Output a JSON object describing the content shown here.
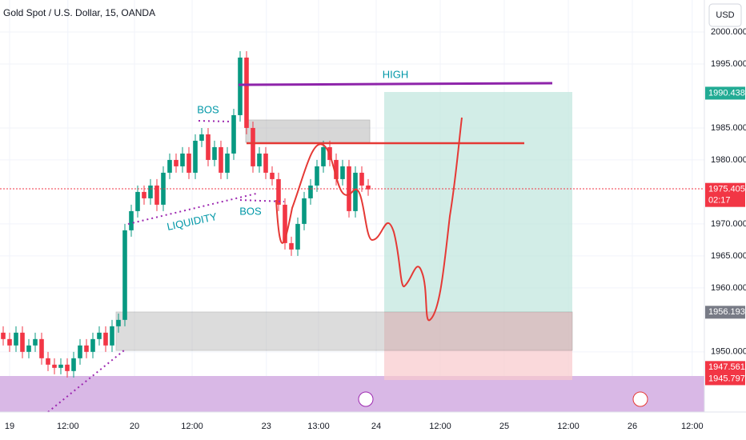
{
  "chart_data": {
    "type": "candlestick",
    "title": "Gold Spot / U.S. Dollar, 15, OANDA",
    "currency": "USD",
    "up_color": "#089981",
    "down_color": "#f23645",
    "xlim": [
      0,
      110
    ],
    "ylim": [
      1940.6,
      2005
    ],
    "xticks": [
      {
        "value": 1.5,
        "label": "19"
      },
      {
        "value": 10.6,
        "label": "12:00"
      },
      {
        "value": 21,
        "label": "20"
      },
      {
        "value": 30,
        "label": "12:00"
      },
      {
        "value": 41.6,
        "label": "23"
      },
      {
        "value": 49.75,
        "label": "13:00"
      },
      {
        "value": 58.75,
        "label": "24"
      },
      {
        "value": 68.75,
        "label": "12:00"
      },
      {
        "value": 78.75,
        "label": "25"
      },
      {
        "value": 88.75,
        "label": "12:00"
      },
      {
        "value": 98.75,
        "label": "26"
      },
      {
        "value": 108.1,
        "label": "12:00"
      }
    ],
    "yticks": [
      {
        "value": 1950,
        "label": "1950.000"
      },
      {
        "value": 1960,
        "label": "1960.000"
      },
      {
        "value": 1965,
        "label": "1965.000"
      },
      {
        "value": 1970,
        "label": "1970.000"
      },
      {
        "value": 1980,
        "label": "1980.000"
      },
      {
        "value": 1985,
        "label": "1985.000"
      },
      {
        "value": 1995,
        "label": "1995.000"
      },
      {
        "value": 2000,
        "label": "2000.000"
      }
    ],
    "open": [
      1953,
      1952,
      1951,
      1953,
      1950,
      1951,
      1952,
      1949,
      1948,
      1947.5,
      1948,
      1947,
      1949,
      1951,
      1950,
      1952,
      1953,
      1951,
      1954,
      1955,
      1969,
      1972,
      1975,
      1974,
      1976,
      1973,
      1978,
      1980,
      1979,
      1981,
      1978,
      1983,
      1984,
      1980,
      1982,
      1978,
      1981,
      1987,
      1996,
      1985,
      1979,
      1981,
      1978,
      1977,
      1973,
      1967,
      1966,
      1970,
      1974,
      1976,
      1979,
      1982,
      1980,
      1977,
      1979,
      1972,
      1978,
      1976
    ],
    "high": [
      1954,
      1953,
      1954,
      1954,
      1952,
      1953,
      1953,
      1950,
      1949,
      1949,
      1949,
      1950,
      1952,
      1952,
      1953,
      1954,
      1954,
      1955,
      1956,
      1970,
      1973,
      1976,
      1976,
      1977,
      1977,
      1979,
      1981,
      1981,
      1982,
      1982,
      1984,
      1985,
      1985,
      1983,
      1983,
      1982,
      1988,
      1997,
      1997,
      1986,
      1982,
      1982,
      1979,
      1978,
      1974,
      1968,
      1971,
      1975,
      1977,
      1980,
      1983,
      1983,
      1981,
      1980,
      1980,
      1979,
      1979,
      1977
    ],
    "low": [
      1951,
      1950,
      1950,
      1949,
      1949,
      1950,
      1948,
      1947,
      1946.5,
      1946.5,
      1946,
      1946,
      1948,
      1949,
      1949,
      1951,
      1950,
      1950,
      1953,
      1954,
      1968,
      1971,
      1973,
      1973,
      1972,
      1972,
      1977,
      1978,
      1978,
      1977,
      1977,
      1982,
      1979,
      1979,
      1977,
      1977,
      1980,
      1986,
      1984,
      1978,
      1978,
      1977,
      1976,
      1972,
      1966,
      1965,
      1965,
      1969,
      1973,
      1975,
      1978,
      1979,
      1976,
      1976,
      1971,
      1971,
      1975,
      1974.4
    ],
    "close": [
      1952,
      1951,
      1953,
      1950,
      1951,
      1952,
      1949,
      1948,
      1947.5,
      1948,
      1947,
      1949,
      1951,
      1950,
      1952,
      1953,
      1951,
      1954,
      1955,
      1969,
      1972,
      1975,
      1974,
      1976,
      1973,
      1978,
      1980,
      1979,
      1981,
      1978,
      1983,
      1984,
      1980,
      1982,
      1978,
      1981,
      1987,
      1996,
      1985,
      1979,
      1981,
      1978,
      1977,
      1973,
      1967,
      1966,
      1970,
      1974,
      1976,
      1979,
      1982,
      1980,
      1977,
      1979,
      1972,
      1978,
      1976,
      1975.4
    ],
    "price_badges": [
      {
        "value": 1990.438,
        "label": "1990.438",
        "color": "#22ab94"
      },
      {
        "value": 1975.405,
        "label": "1975.405",
        "color": "#f23645",
        "sub": "02:17"
      },
      {
        "value": 1956.193,
        "label": "1956.193",
        "color": "#787b86"
      },
      {
        "value": 1947.561,
        "label": "1947.561",
        "color": "#f23645"
      },
      {
        "value": 1945.797,
        "label": "1945.797",
        "color": "#f23645"
      }
    ],
    "annotations": {
      "high": "HIGH",
      "bos_1": "BOS",
      "bos_2": "BOS",
      "liquidity": "LIQUIDITY"
    }
  }
}
